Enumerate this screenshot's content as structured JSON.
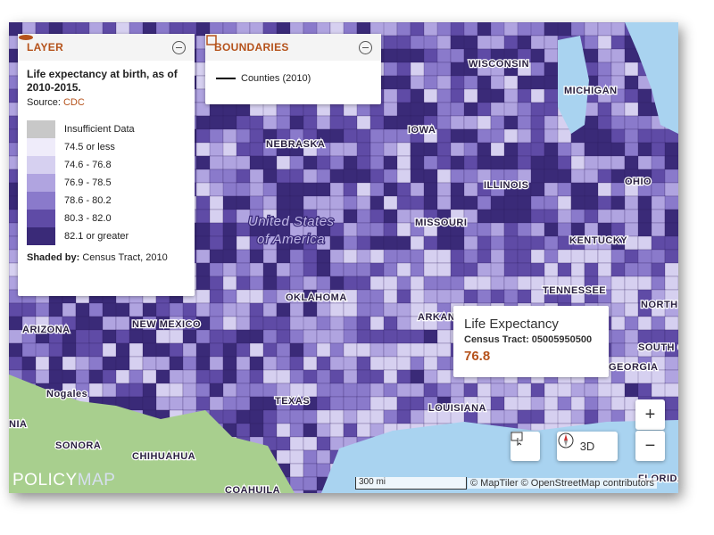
{
  "layer_panel": {
    "header": "LAYER",
    "title": "Life expectancy at birth, as of 2010-2015.",
    "source_label": "Source:",
    "source": "CDC",
    "legend": [
      {
        "label": "Insufficient Data",
        "color": "#c8c8c8"
      },
      {
        "label": "74.5 or less",
        "color": "#efecfa"
      },
      {
        "label": "74.6 - 76.8",
        "color": "#d6d0f0"
      },
      {
        "label": "76.9 - 78.5",
        "color": "#b0a4e0"
      },
      {
        "label": "78.6 - 80.2",
        "color": "#8a7acb"
      },
      {
        "label": "80.3 - 82.0",
        "color": "#5f4ba6"
      },
      {
        "label": "82.1 or greater",
        "color": "#3a2a78"
      }
    ],
    "shaded_by_label": "Shaded by:",
    "shaded_by": "Census Tract, 2010"
  },
  "boundaries_panel": {
    "header": "BOUNDARIES",
    "item": "Counties (2010)"
  },
  "tooltip": {
    "title": "Life Expectancy",
    "subtitle": "Census Tract: 05005950500",
    "value": "76.8"
  },
  "map_labels": [
    "WISCONSIN",
    "MICHIGAN",
    "IOWA",
    "NEBRASKA",
    "ILLINOIS",
    "OHIO",
    "MISSOURI",
    "KENTUCKY",
    "United States",
    "of America",
    "OKLAHOMA",
    "TENNESSEE",
    "ARKAN",
    "NORTH",
    "SOUTH C",
    "GEORGIA",
    "ARIZONA",
    "NEW MEXICO",
    "Nogales",
    "TEXAS",
    "LOUISIANA",
    "NIA",
    "SONORA",
    "CHIHUAHUA",
    "COAHUILA",
    "FLORIDA"
  ],
  "controls": {
    "three_d": "3D",
    "scale": "300 mi",
    "attribution": "© MapTiler © OpenStreetMap contributors",
    "logo_a": "POLICY",
    "logo_b": "MAP"
  }
}
